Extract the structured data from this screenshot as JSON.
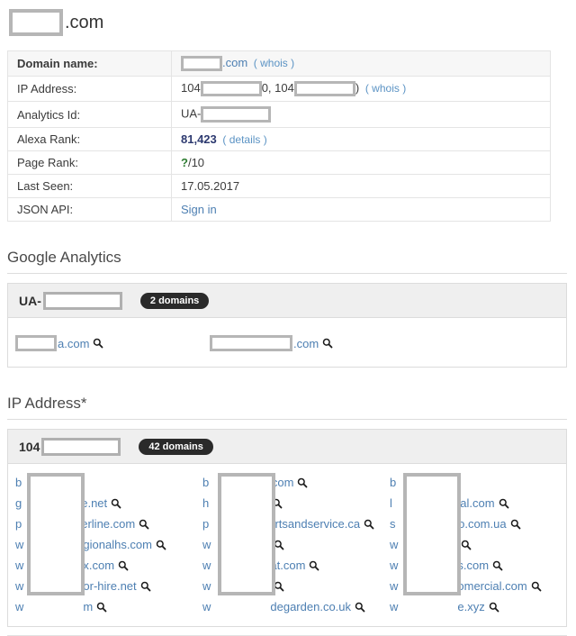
{
  "page": {
    "title_suffix": ".com"
  },
  "info_table": {
    "rows": {
      "domain": {
        "label": "Domain name:",
        "tld": ".com",
        "whois": "( whois )"
      },
      "ip": {
        "label": "IP Address:",
        "prefix1": "104",
        "mid": "0,",
        "prefix2": "104",
        "close": ")",
        "whois": "( whois )"
      },
      "analytics": {
        "label": "Analytics Id:",
        "prefix": "UA-"
      },
      "alexa": {
        "label": "Alexa Rank:",
        "value": "81,423",
        "details": "( details )"
      },
      "pagerank": {
        "label": "Page Rank:",
        "q": "?",
        "suffix": "/10"
      },
      "lastseen": {
        "label": "Last Seen:",
        "value": "17.05.2017"
      },
      "jsonapi": {
        "label": "JSON API:",
        "link": "Sign in"
      }
    }
  },
  "google_analytics": {
    "heading": "Google Analytics",
    "group_prefix": "UA-",
    "badge": "2 domains",
    "items": [
      {
        "tail": "a.com"
      },
      {
        "tail": ".com"
      }
    ]
  },
  "ip_section": {
    "heading": "IP Address*",
    "group_prefix": "104",
    "badge": "42 domains",
    "columns": [
      {
        "items": [
          {
            "head": "b",
            "tail": "",
            "q": false
          },
          {
            "head": "g",
            "tail": "e.net",
            "q": true
          },
          {
            "head": "p",
            "tail": "erline.com",
            "q": true
          },
          {
            "head": "w",
            "tail": "gionalhs.com",
            "q": true
          },
          {
            "head": "w",
            "tail": "x.com",
            "q": true
          },
          {
            "head": "w",
            "tail": "or-hire.net",
            "q": true
          },
          {
            "head": "w",
            "tail": "m",
            "q": true
          }
        ]
      },
      {
        "items": [
          {
            "head": "b",
            "tail": ".com",
            "q": true
          },
          {
            "head": "h",
            "tail": "",
            "q": true
          },
          {
            "head": "p",
            "tail": "artsandservice.ca",
            "q": true
          },
          {
            "head": "w",
            "tail": "",
            "q": true
          },
          {
            "head": "w",
            "tail": "at.com",
            "q": true
          },
          {
            "head": "w",
            "tail": "",
            "q": true
          },
          {
            "head": "w",
            "tail": "degarden.co.uk",
            "q": true
          }
        ]
      },
      {
        "items": [
          {
            "head": "b",
            "tail": "",
            "q": false
          },
          {
            "head": "l",
            "tail": "cial.com",
            "q": true
          },
          {
            "head": "s",
            "tail": "to.com.ua",
            "q": true
          },
          {
            "head": "w",
            "tail": "",
            "q": true
          },
          {
            "head": "w",
            "tail": "s.com",
            "q": true
          },
          {
            "head": "w",
            "tail": "omercial.com",
            "q": true
          },
          {
            "head": "w",
            "tail": "e.xyz",
            "q": true
          }
        ]
      }
    ]
  },
  "colors": {
    "link_blue": "#4d7fb2",
    "alexa_navy": "#2d3a70",
    "pagerank_green": "#2f7d32",
    "badge_dark": "#2a2a2a",
    "redact_border": "#b6b6b6"
  },
  "icons": {
    "magnifier": "magnifier-icon"
  }
}
